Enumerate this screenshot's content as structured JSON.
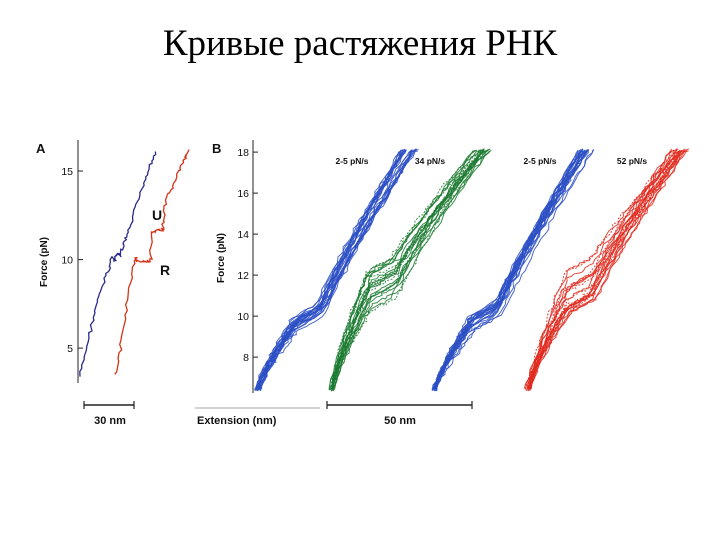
{
  "slide": {
    "title": "Кривые растяжения РНК"
  },
  "chart_data": [
    {
      "panel": "A",
      "type": "line",
      "ylabel": "Force (pN)",
      "ylim": [
        3.2,
        16.3
      ],
      "yticks": [
        5,
        10,
        15
      ],
      "scale_bar": "30 nm",
      "annotations": [
        "U",
        "R"
      ],
      "series": [
        {
          "color": "#2a2a8c",
          "x": [
            0,
            4,
            8,
            12,
            16,
            20,
            22,
            24,
            26,
            28,
            30,
            32,
            36,
            40,
            44,
            48,
            52
          ],
          "y": [
            3.4,
            4.8,
            6.3,
            7.6,
            8.6,
            9.5,
            10.2,
            9.9,
            10.4,
            10.2,
            10.8,
            11.2,
            12.2,
            13.3,
            14.4,
            15.3,
            16.1
          ]
        },
        {
          "color": "#d43418",
          "x": [
            0,
            3,
            6,
            9,
            12,
            14,
            14.5,
            18,
            22,
            24,
            24.5,
            28,
            32,
            33,
            34,
            36,
            40,
            44,
            48,
            50
          ],
          "y": [
            3.5,
            4.9,
            6.6,
            8.2,
            9.6,
            10.2,
            9.9,
            9.9,
            9.9,
            10.0,
            11.5,
            11.6,
            11.7,
            12.1,
            13.0,
            13.6,
            14.3,
            15.1,
            15.7,
            16.2
          ]
        }
      ]
    },
    {
      "panel": "B",
      "type": "line",
      "ylabel": "Force (pN)",
      "xlabel": "Extension (nm)",
      "ylim": [
        6.3,
        18.2
      ],
      "yticks": [
        8,
        10,
        12,
        14,
        16,
        18
      ],
      "scale_bar": "50 nm",
      "series": [
        {
          "name": "2-5 pN/s",
          "color": "#2b4fc4",
          "plateau": 10.0
        },
        {
          "name": "34 pN/s",
          "color": "#1b7a30",
          "plateau": 11.5
        },
        {
          "name": "2-5 pN/s",
          "color": "#2b4fc4",
          "plateau": 10.0
        },
        {
          "name": "52 pN/s",
          "color": "#e02a1f",
          "plateau": 11.5
        }
      ]
    }
  ]
}
